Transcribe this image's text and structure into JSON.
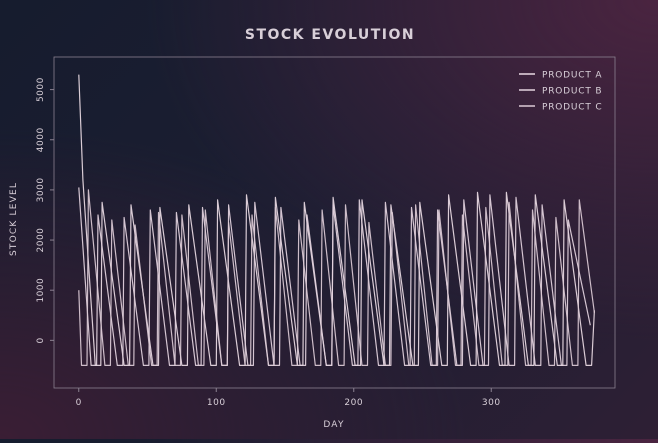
{
  "chart_data": {
    "type": "line",
    "title": "STOCK EVOLUTION",
    "x_label": "DAY",
    "y_label": "STOCK LEVEL",
    "xlim": [
      -18,
      390
    ],
    "ylim": [
      -950,
      5650
    ],
    "xticks": [
      0,
      100,
      200,
      300
    ],
    "yticks": [
      0,
      1000,
      2000,
      3000,
      4000,
      5000
    ],
    "legend": "upper right",
    "series": [
      {
        "name": "PRODUCT A",
        "color": "#eadbe4",
        "x": [
          0,
          3,
          12,
          16,
          17,
          33,
          37,
          38,
          54,
          58,
          59,
          75,
          79,
          80,
          96,
          100,
          101,
          117,
          121,
          122,
          138,
          142,
          143,
          159,
          163,
          164,
          180,
          184,
          185,
          201,
          205,
          206,
          222,
          226,
          227,
          243,
          247,
          248,
          264,
          268,
          269,
          285,
          289,
          290,
          306,
          310,
          311,
          327,
          331,
          332,
          348,
          352,
          353,
          369,
          373,
          375
        ],
        "values": [
          5300,
          3200,
          -500,
          -500,
          2750,
          -500,
          -500,
          2700,
          -500,
          -500,
          2650,
          -500,
          -500,
          2700,
          -500,
          -500,
          2800,
          -500,
          -500,
          2900,
          -500,
          -500,
          2850,
          -500,
          -500,
          2750,
          -500,
          -500,
          2850,
          -500,
          -500,
          2800,
          -500,
          -500,
          2700,
          -500,
          -500,
          2750,
          -500,
          -500,
          2900,
          -500,
          -500,
          2950,
          -500,
          -500,
          2950,
          -500,
          -500,
          2900,
          -500,
          -500,
          2800,
          -500,
          -500,
          600
        ]
      },
      {
        "name": "PRODUCT B",
        "color": "#e4d4df",
        "x": [
          0,
          9,
          13,
          14,
          28,
          32,
          33,
          47,
          51,
          52,
          66,
          70,
          71,
          85,
          89,
          90,
          104,
          108,
          109,
          123,
          127,
          128,
          142,
          146,
          147,
          161,
          165,
          166,
          180,
          184,
          185,
          199,
          203,
          204,
          218,
          222,
          223,
          237,
          241,
          242,
          256,
          260,
          261,
          275,
          279,
          280,
          294,
          298,
          299,
          313,
          317,
          318,
          332,
          336,
          337,
          351,
          355,
          356,
          372
        ],
        "values": [
          3050,
          -500,
          -500,
          2500,
          -500,
          -500,
          2450,
          -500,
          -500,
          2600,
          -500,
          -500,
          2550,
          -500,
          -500,
          2650,
          -500,
          -500,
          2700,
          -500,
          -500,
          2750,
          -500,
          -500,
          2650,
          -500,
          -500,
          2500,
          -500,
          -500,
          2700,
          -500,
          -500,
          2800,
          -500,
          -500,
          2750,
          -500,
          -500,
          2650,
          -500,
          -500,
          2600,
          -500,
          -500,
          2800,
          -500,
          -500,
          2900,
          -500,
          -500,
          2850,
          -500,
          -500,
          2700,
          -500,
          -500,
          2400,
          300
        ]
      },
      {
        "name": "PRODUCT C",
        "color": "#dccbd6",
        "x": [
          0,
          2,
          6,
          7,
          19,
          23,
          24,
          36,
          40,
          41,
          53,
          57,
          58,
          70,
          74,
          75,
          87,
          91,
          92,
          104,
          108,
          109,
          121,
          125,
          126,
          138,
          142,
          143,
          155,
          159,
          160,
          172,
          176,
          177,
          189,
          193,
          194,
          206,
          210,
          211,
          223,
          227,
          228,
          240,
          244,
          245,
          257,
          261,
          262,
          274,
          278,
          279,
          291,
          295,
          296,
          308,
          312,
          313,
          325,
          329,
          330,
          342,
          346,
          347,
          359,
          363,
          364,
          375
        ],
        "values": [
          1000,
          -500,
          -500,
          3000,
          -500,
          -500,
          2400,
          -500,
          -500,
          2300,
          -500,
          -500,
          2550,
          -500,
          -500,
          2500,
          -500,
          -500,
          2600,
          -500,
          -500,
          2350,
          -500,
          -500,
          2500,
          -500,
          -500,
          2650,
          -500,
          -500,
          2400,
          -500,
          -500,
          2600,
          -500,
          -500,
          2700,
          -500,
          -500,
          2350,
          -500,
          -500,
          2550,
          -500,
          -500,
          2700,
          -500,
          -500,
          2600,
          -500,
          -500,
          2500,
          -500,
          -500,
          2650,
          -500,
          -500,
          2750,
          -500,
          -500,
          2600,
          -500,
          -500,
          2450,
          -500,
          -500,
          2800,
          550
        ]
      }
    ]
  }
}
